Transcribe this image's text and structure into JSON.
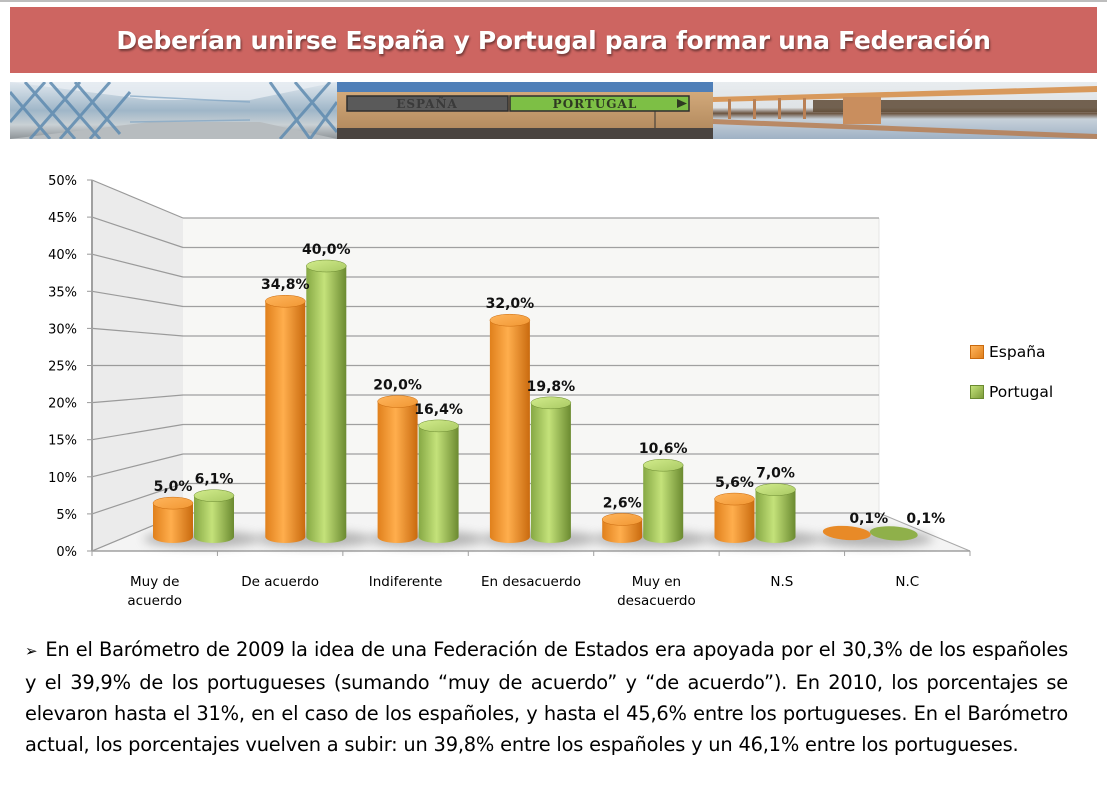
{
  "header": {
    "title": "Deberían unirse España y Portugal para formar una Federación",
    "title_bg": "#cd6561",
    "banner_images": [
      {
        "name": "bridge-walkway-photo",
        "caption": ""
      },
      {
        "name": "border-sign-photo",
        "sign_left": "ESPAÑA",
        "sign_right": "PORTUGAL"
      },
      {
        "name": "river-bridge-photo",
        "caption": ""
      }
    ]
  },
  "chart_data": {
    "type": "bar",
    "style": "3d-cylinder",
    "title": "",
    "xlabel": "",
    "ylabel": "",
    "categories": [
      "Muy de acuerdo",
      "De acuerdo",
      "Indiferente",
      "En desacuerdo",
      "Muy en desacuerdo",
      "N.S",
      "N.C"
    ],
    "category_lines": [
      [
        "Muy de",
        "acuerdo"
      ],
      [
        "De acuerdo"
      ],
      [
        "Indiferente"
      ],
      [
        "En desacuerdo"
      ],
      [
        "Muy en",
        "desacuerdo"
      ],
      [
        "N.S"
      ],
      [
        "N.C"
      ]
    ],
    "series": [
      {
        "name": "España",
        "color": "#f39a2e",
        "values": [
          5.0,
          34.8,
          20.0,
          32.0,
          2.6,
          5.6,
          0.1
        ],
        "labels": [
          "5,0%",
          "34,8%",
          "20,0%",
          "32,0%",
          "2,6%",
          "5,6%",
          "0,1%"
        ]
      },
      {
        "name": "Portugal",
        "color": "#9bbb59",
        "values": [
          6.1,
          40.0,
          16.4,
          19.8,
          10.6,
          7.0,
          0.1
        ],
        "labels": [
          "6,1%",
          "40,0%",
          "16,4%",
          "19,8%",
          "10,6%",
          "7,0%",
          "0,1%"
        ]
      }
    ],
    "ylim": [
      0,
      50
    ],
    "yticks": [
      "0%",
      "5%",
      "10%",
      "15%",
      "20%",
      "25%",
      "30%",
      "35%",
      "40%",
      "45%",
      "50%"
    ],
    "grid": true,
    "legend_position": "right"
  },
  "legend": {
    "items": [
      {
        "label": "España",
        "color": "#f39a2e"
      },
      {
        "label": "Portugal",
        "color": "#9bbb59"
      }
    ]
  },
  "body_text": {
    "bullet": "➢",
    "paragraph": "En el Barómetro de 2009 la idea de una Federación de Estados era apoyada por el 30,3% de los españoles y el 39,9% de los portugueses (sumando “muy de acuerdo” y “de acuerdo”). En 2010, los porcentajes se elevaron hasta el 31%, en el caso de los españoles, y hasta el 45,6% entre los portugueses. En el Barómetro actual, los porcentajes vuelven a subir: un 39,8% entre los españoles y un 46,1% entre los portugueses."
  }
}
